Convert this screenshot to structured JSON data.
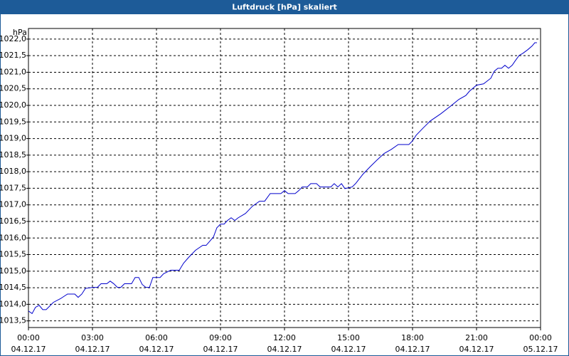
{
  "chart_data": {
    "type": "line",
    "title": "Luftdruck [hPa] skaliert",
    "ylabel": "hPa",
    "x": [
      0,
      0.17,
      0.33,
      0.5,
      0.67,
      0.83,
      1.0,
      1.17,
      1.5,
      1.83,
      2.17,
      2.33,
      2.5,
      2.67,
      3.0,
      3.23,
      3.4,
      3.67,
      3.83,
      4.0,
      4.17,
      4.33,
      4.5,
      4.83,
      5.0,
      5.17,
      5.33,
      5.5,
      5.67,
      5.83,
      6.17,
      6.33,
      6.67,
      7.07,
      7.27,
      7.5,
      7.83,
      8.17,
      8.33,
      8.67,
      8.83,
      9.0,
      9.17,
      9.33,
      9.5,
      9.67,
      9.83,
      10.17,
      10.5,
      10.83,
      11.07,
      11.33,
      11.83,
      12.0,
      12.17,
      12.5,
      12.67,
      12.83,
      13.07,
      13.23,
      13.5,
      13.67,
      14.17,
      14.33,
      14.5,
      14.67,
      14.83,
      15.17,
      15.33,
      15.67,
      16.0,
      16.33,
      16.67,
      17.0,
      17.33,
      17.83,
      18.0,
      18.17,
      18.5,
      18.83,
      19.33,
      19.83,
      20.17,
      20.5,
      20.67,
      21.0,
      21.33,
      21.67,
      21.83,
      22.0,
      22.17,
      22.33,
      22.5,
      22.67,
      22.83,
      23.0,
      23.17,
      23.4,
      23.6,
      23.73,
      23.83
    ],
    "values": [
      1013.8,
      1013.72,
      1013.91,
      1013.97,
      1013.84,
      1013.84,
      1013.95,
      1014.06,
      1014.17,
      1014.31,
      1014.31,
      1014.21,
      1014.31,
      1014.48,
      1014.51,
      1014.51,
      1014.62,
      1014.62,
      1014.7,
      1014.62,
      1014.51,
      1014.51,
      1014.62,
      1014.62,
      1014.81,
      1014.81,
      1014.6,
      1014.51,
      1014.51,
      1014.81,
      1014.81,
      1014.92,
      1015.03,
      1015.03,
      1015.24,
      1015.41,
      1015.63,
      1015.78,
      1015.78,
      1016.03,
      1016.31,
      1016.42,
      1016.42,
      1016.53,
      1016.61,
      1016.53,
      1016.61,
      1016.74,
      1016.96,
      1017.11,
      1017.11,
      1017.34,
      1017.34,
      1017.43,
      1017.34,
      1017.34,
      1017.43,
      1017.54,
      1017.54,
      1017.64,
      1017.64,
      1017.54,
      1017.54,
      1017.64,
      1017.54,
      1017.64,
      1017.49,
      1017.54,
      1017.64,
      1017.92,
      1018.14,
      1018.35,
      1018.55,
      1018.67,
      1018.82,
      1018.82,
      1018.93,
      1019.1,
      1019.32,
      1019.53,
      1019.75,
      1020.0,
      1020.18,
      1020.3,
      1020.43,
      1020.61,
      1020.65,
      1020.82,
      1021.03,
      1021.12,
      1021.12,
      1021.21,
      1021.12,
      1021.21,
      1021.36,
      1021.51,
      1021.57,
      1021.68,
      1021.79,
      1021.89,
      1021.89
    ],
    "color": "#0000cc",
    "xlim": [
      0,
      24
    ],
    "xticks": [
      {
        "value": 0,
        "label": "00:00"
      },
      {
        "value": 3,
        "label": "03:00"
      },
      {
        "value": 6,
        "label": "06:00"
      },
      {
        "value": 9,
        "label": "09:00"
      },
      {
        "value": 12,
        "label": "12:00"
      },
      {
        "value": 15,
        "label": "15:00"
      },
      {
        "value": 18,
        "label": "18:00"
      },
      {
        "value": 21,
        "label": "21:00"
      },
      {
        "value": 24,
        "label": "00:00"
      }
    ],
    "xtick_dates": [
      "04.12.17",
      "04.12.17",
      "04.12.17",
      "04.12.17",
      "04.12.17",
      "04.12.17",
      "04.12.17",
      "04.12.17",
      "05.12.17"
    ],
    "ylim": [
      1013.3,
      1022.32
    ],
    "yticks": [
      {
        "value": 1013.5,
        "label": "1013,5"
      },
      {
        "value": 1014,
        "label": "1014,0"
      },
      {
        "value": 1014.5,
        "label": "1014,5"
      },
      {
        "value": 1015,
        "label": "1015,0"
      },
      {
        "value": 1015.5,
        "label": "1015,5"
      },
      {
        "value": 1016,
        "label": "1016,0"
      },
      {
        "value": 1016.5,
        "label": "1016,5"
      },
      {
        "value": 1017,
        "label": "1017,0"
      },
      {
        "value": 1017.5,
        "label": "1017,5"
      },
      {
        "value": 1018,
        "label": "1018,0"
      },
      {
        "value": 1018.5,
        "label": "1018,5"
      },
      {
        "value": 1019,
        "label": "1019,0"
      },
      {
        "value": 1019.5,
        "label": "1019,5"
      },
      {
        "value": 1020,
        "label": "1020,0"
      },
      {
        "value": 1020.5,
        "label": "1020,5"
      },
      {
        "value": 1021,
        "label": "1021,0"
      },
      {
        "value": 1021.5,
        "label": "1021,5"
      },
      {
        "value": 1022,
        "label": "1022,0"
      }
    ],
    "grid": true
  }
}
